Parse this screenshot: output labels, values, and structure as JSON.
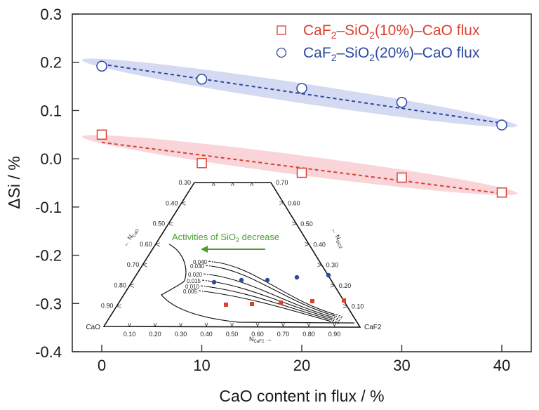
{
  "chart_data": {
    "type": "scatter",
    "title": "",
    "xlabel": "CaO content in flux / %",
    "ylabel": "ΔSi / %",
    "xlim": [
      -3,
      43
    ],
    "ylim": [
      -0.4,
      0.3
    ],
    "xticks": [
      0,
      10,
      20,
      30,
      40
    ],
    "xtick_labels": [
      "0",
      "10",
      "20",
      "30",
      "40"
    ],
    "yticks": [
      0.3,
      0.2,
      0.1,
      0.0,
      -0.1,
      -0.2,
      -0.3,
      -0.4
    ],
    "ytick_labels": [
      "0.3",
      "0.2",
      "0.1",
      "0.0",
      "-0.1",
      "-0.2",
      "-0.3",
      "-0.4"
    ],
    "grid": false,
    "legend_position": "top-right",
    "series": [
      {
        "name": "CaF2–SiO2(10%)–CaO flux",
        "legend_parts": [
          "CaF",
          "2",
          "–SiO",
          "2",
          "(10%)–CaO flux"
        ],
        "marker": "square",
        "color": "#d9402f",
        "band_color": "#f7c6cb",
        "x": [
          0,
          10,
          20,
          30,
          40
        ],
        "y": [
          0.05,
          -0.009,
          -0.029,
          -0.039,
          -0.07
        ],
        "trend": {
          "x": [
            0,
            40
          ],
          "y": [
            0.034,
            -0.072
          ]
        }
      },
      {
        "name": "CaF2–SiO2(20%)–CaO flux",
        "legend_parts": [
          "CaF",
          "2",
          "–SiO",
          "2",
          "(20%)–CaO flux"
        ],
        "marker": "circle",
        "color": "#2e47a3",
        "band_color": "#c7cdef",
        "x": [
          0,
          10,
          20,
          30,
          40
        ],
        "y": [
          0.192,
          0.165,
          0.146,
          0.117,
          0.07
        ],
        "trend": {
          "x": [
            0,
            40
          ],
          "y": [
            0.196,
            0.074
          ]
        }
      }
    ],
    "inset": {
      "type": "ternary",
      "vertices": {
        "left": "CaO",
        "right": "CaF2"
      },
      "top_left_label": "0.30",
      "top_right_label": "0.70",
      "left_axis_label": "N_CaO",
      "left_axis_ticks": [
        "0.40",
        "0.50",
        "0.60",
        "0.70",
        "0.80",
        "0.90"
      ],
      "right_axis_label": "N_SiO2",
      "right_axis_ticks": [
        "0.60",
        "0.50",
        "0.40",
        "0.30",
        "0.20",
        "0.10"
      ],
      "bottom_axis_label": "N_CaF2",
      "bottom_axis_ticks": [
        "0.10",
        "0.20",
        "0.30",
        "0.40",
        "0.50",
        "0.60",
        "0.70",
        "0.80",
        "0.90"
      ],
      "iso_activity_labels": [
        "0.040",
        "0.030",
        "0.020",
        "0.015",
        "0.010",
        "0.005"
      ],
      "annotation": {
        "text_before": "Activities of SiO",
        "sub": "2",
        "text_after": " decrease",
        "color": "#4a9e2f"
      },
      "blue_points_count": 5,
      "red_points_count": 5
    }
  }
}
